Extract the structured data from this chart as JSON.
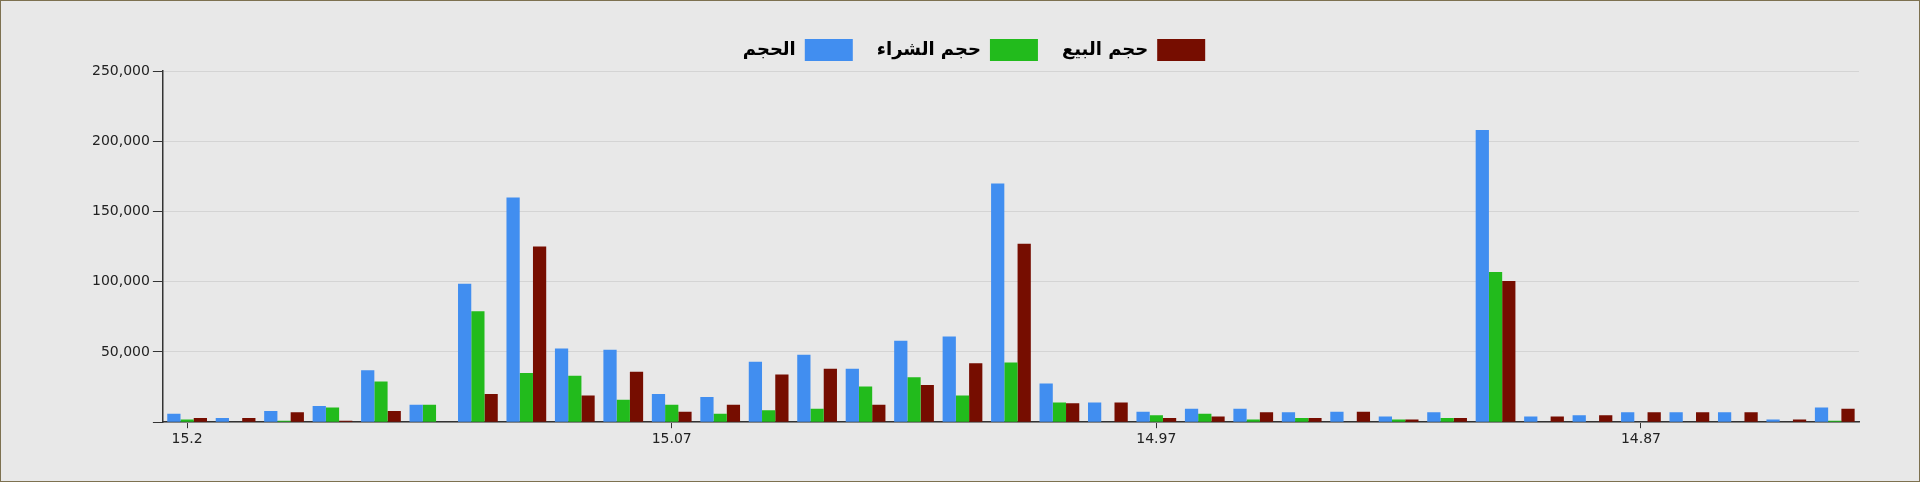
{
  "chart_data": {
    "type": "bar",
    "categories": [
      "15.2",
      null,
      null,
      null,
      null,
      null,
      null,
      null,
      null,
      null,
      "15.07",
      null,
      null,
      null,
      null,
      null,
      null,
      null,
      null,
      null,
      "14.97",
      null,
      null,
      null,
      null,
      null,
      null,
      null,
      null,
      null,
      "14.87",
      null,
      null,
      null,
      null
    ],
    "series": [
      {
        "name": "الحجم",
        "color": "#418ef0",
        "values": [
          6000,
          3000,
          8000,
          11500,
          37000,
          12500,
          98500,
          160000,
          52500,
          51500,
          20000,
          18000,
          43000,
          48000,
          38000,
          58000,
          61000,
          170000,
          27500,
          14000,
          7500,
          9500,
          9500,
          7000,
          7500,
          4000,
          7000,
          208000,
          4000,
          5000,
          7000,
          7000,
          7000,
          2000,
          10500
        ]
      },
      {
        "name": "حجم الشراء",
        "color": "#22bb1c",
        "values": [
          2000,
          0,
          1000,
          10500,
          29000,
          12500,
          79000,
          35000,
          33000,
          16000,
          12500,
          6000,
          8500,
          9500,
          25500,
          32000,
          19000,
          42500,
          14000,
          0,
          5000,
          6000,
          2000,
          3000,
          0,
          2000,
          3000,
          107000,
          0,
          0,
          0,
          0,
          0,
          0,
          1000
        ]
      },
      {
        "name": "حجم البيع",
        "color": "#760d00",
        "values": [
          3000,
          3000,
          7000,
          1000,
          8000,
          0,
          20000,
          125000,
          19000,
          36000,
          7500,
          12500,
          34000,
          38000,
          12500,
          26500,
          42000,
          127000,
          13500,
          14000,
          3000,
          4000,
          7000,
          3000,
          7500,
          2000,
          3000,
          100500,
          4000,
          5000,
          7000,
          7000,
          7000,
          2000,
          9500
        ]
      }
    ],
    "ylim": [
      0,
      250000
    ],
    "yticks": [
      {
        "value": 0,
        "label": null
      },
      {
        "value": 50000,
        "label": "50,000"
      },
      {
        "value": 100000,
        "label": "100,000"
      },
      {
        "value": 150000,
        "label": "150,000"
      },
      {
        "value": 200000,
        "label": "200,000"
      },
      {
        "value": 250000,
        "label": "250,000"
      }
    ],
    "grid": "y",
    "legend": "top"
  }
}
